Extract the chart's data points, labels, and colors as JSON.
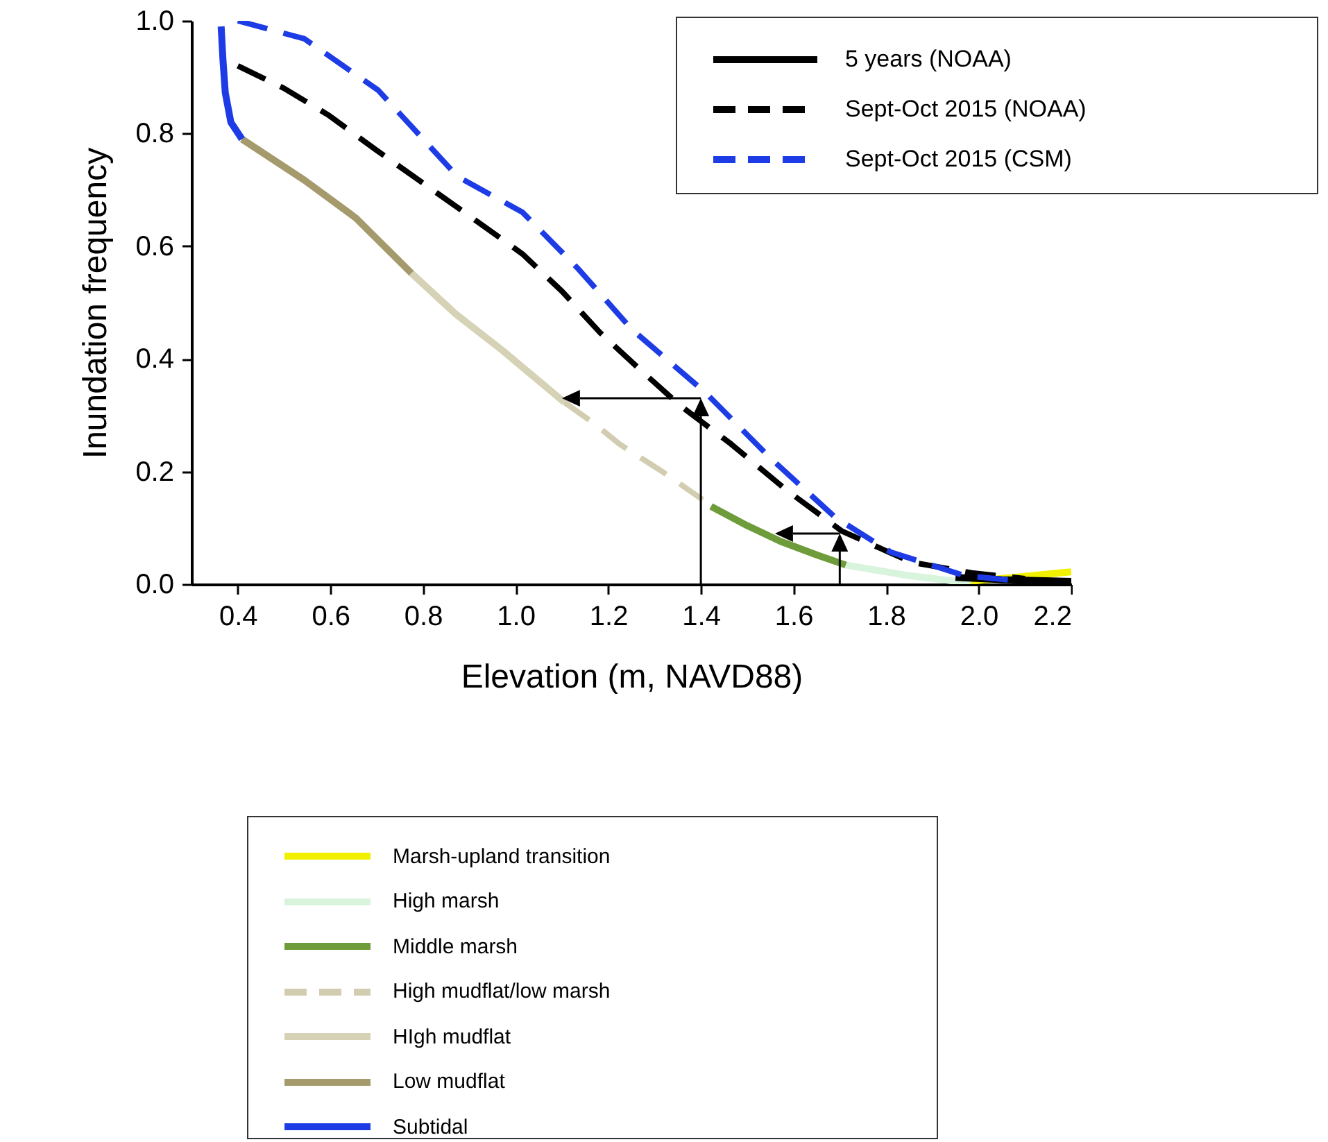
{
  "chart_data": {
    "type": "line",
    "xlabel": "Elevation (m, NAVD88)",
    "ylabel": "Inundation frequency",
    "xlim": [
      0.3,
      2.2
    ],
    "ylim": [
      0,
      1.0
    ],
    "xticks": [
      0.4,
      0.6,
      0.8,
      {
        "value": 1.0,
        "label": "1.0"
      },
      1.2,
      1.4,
      1.6,
      1.8,
      {
        "value": 2.0,
        "label": "2.0"
      },
      2.2
    ],
    "yticks": [
      {
        "value": 0,
        "label": "0.0"
      },
      0.2,
      0.4,
      0.6,
      0.8,
      {
        "value": 1.0,
        "label": "1.0"
      }
    ],
    "legend": "bottom right",
    "series": [
      {
        "name": "5 years (NOAA)",
        "color": "#000000",
        "line_style": "solid",
        "x": [
          1.95,
          2.05,
          2.2
        ],
        "values": [
          0.012,
          0.008,
          0.005
        ]
      },
      {
        "name": "Sept-Oct 2015 (NOAA)",
        "color": "#000000",
        "line_style": "dashed",
        "x": [
          0.4,
          0.5,
          0.595,
          0.7,
          0.805,
          0.91,
          1.015,
          1.1,
          1.183,
          1.27,
          1.354,
          1.465,
          1.585,
          1.705,
          1.855,
          1.985,
          2.1
        ],
        "values": [
          0.92,
          0.88,
          0.833,
          0.77,
          0.709,
          0.648,
          0.586,
          0.52,
          0.446,
          0.38,
          0.318,
          0.249,
          0.167,
          0.094,
          0.039,
          0.02,
          0.01
        ]
      },
      {
        "name": "Sept-Oct 2015 (CSM)",
        "color": "#1e3ce6",
        "line_style": "dashed",
        "x": [
          0.4,
          0.544,
          0.703,
          0.874,
          1.015,
          1.135,
          1.25,
          1.41,
          1.55,
          1.691,
          1.81,
          1.97,
          2.07
        ],
        "values": [
          1.0,
          0.968,
          0.877,
          0.724,
          0.66,
          0.56,
          0.453,
          0.34,
          0.224,
          0.118,
          0.057,
          0.015,
          0.007
        ]
      },
      {
        "name": "Marsh-upland transition",
        "color": "#f0f000",
        "line_style": "solid",
        "x": [
          1.98,
          2.1,
          2.2
        ],
        "values": [
          0.005,
          0.014,
          0.022
        ]
      },
      {
        "name": "High marsh",
        "color": "#d8f4dc",
        "line_style": "solid",
        "x": [
          1.713,
          1.85,
          1.983
        ],
        "values": [
          0.034,
          0.015,
          0.002
        ]
      },
      {
        "name": "Middle marsh",
        "color": "#6e9c3a",
        "line_style": "solid",
        "x": [
          1.422,
          1.5,
          1.572,
          1.65,
          1.713
        ],
        "values": [
          0.138,
          0.104,
          0.076,
          0.052,
          0.034
        ]
      },
      {
        "name": "High mudflat/low marsh",
        "color": "#d2cdb0",
        "line_style": "dashed",
        "x": [
          1.105,
          1.17,
          1.224,
          1.32,
          1.404
        ],
        "values": [
          0.323,
          0.285,
          0.249,
          0.198,
          0.15
        ]
      },
      {
        "name": "HIgh mudflat",
        "color": "#d6d2b6",
        "line_style": "solid",
        "x": [
          0.775,
          0.87,
          0.973,
          1.105
        ],
        "values": [
          0.552,
          0.48,
          0.414,
          0.323
        ]
      },
      {
        "name": "Low mudflat",
        "color": "#a49a6c",
        "line_style": "solid",
        "x": [
          0.409,
          0.544,
          0.655,
          0.775
        ],
        "values": [
          0.79,
          0.717,
          0.65,
          0.552
        ]
      },
      {
        "name": "Subtidal",
        "color": "#1e3ce6",
        "line_style": "solid",
        "x": [
          0.364,
          0.368,
          0.373,
          0.385,
          0.409
        ],
        "values": [
          0.99,
          0.93,
          0.872,
          0.82,
          0.79
        ]
      }
    ]
  }
}
